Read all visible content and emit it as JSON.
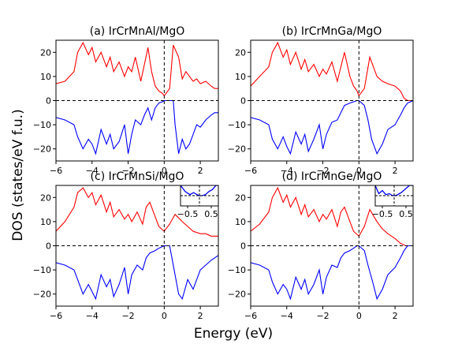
{
  "figure": {
    "xlabel": "Energy (eV)",
    "ylabel": "DOS (states/eV f.u.)"
  },
  "chart_data": [
    {
      "type": "line",
      "title": "(a) IrCrMnAl/MgO",
      "xlim": [
        -6,
        3
      ],
      "ylim": [
        -25,
        25
      ],
      "xticks": [
        -6,
        -4,
        -2,
        0,
        2
      ],
      "yticks": [
        -20,
        -10,
        0,
        10,
        20
      ],
      "series": [
        {
          "color": "#ff0000",
          "x": [
            -6,
            -5.5,
            -5,
            -4.8,
            -4.5,
            -4.2,
            -4,
            -3.8,
            -3.5,
            -3.2,
            -3,
            -2.8,
            -2.5,
            -2.2,
            -2,
            -1.8,
            -1.6,
            -1.3,
            -1.1,
            -0.9,
            -0.7,
            -0.5,
            -0.3,
            -0.1,
            0,
            0.3,
            0.5,
            0.8,
            1,
            1.2,
            1.4,
            1.6,
            1.8,
            2,
            2.3,
            2.6,
            2.8,
            3
          ],
          "y": [
            7,
            8,
            12,
            20,
            24,
            19,
            22,
            16,
            20,
            14,
            18,
            12,
            16,
            10,
            14,
            12,
            18,
            8,
            15,
            22,
            12,
            6,
            4,
            3,
            2,
            5,
            23,
            18,
            9,
            12,
            10,
            8,
            9,
            7,
            8,
            6,
            5,
            5
          ]
        },
        {
          "color": "#0000ff",
          "x": [
            -6,
            -5.5,
            -5,
            -4.8,
            -4.5,
            -4.2,
            -4,
            -3.8,
            -3.5,
            -3.2,
            -3,
            -2.8,
            -2.5,
            -2.2,
            -2,
            -1.8,
            -1.6,
            -1.3,
            -1.1,
            -0.9,
            -0.7,
            -0.5,
            -0.3,
            -0.1,
            0,
            0.3,
            0.5,
            0.6,
            0.8,
            1,
            1.2,
            1.4,
            1.6,
            1.8,
            2,
            2.3,
            2.6,
            2.8,
            3
          ],
          "y": [
            -7,
            -8,
            -10,
            -15,
            -20,
            -16,
            -18,
            -22,
            -12,
            -18,
            -14,
            -20,
            -17,
            -10,
            -22,
            -14,
            -8,
            -10,
            -6,
            -3,
            -8,
            -3,
            -1,
            -0.5,
            0,
            0,
            0,
            -10,
            -22,
            -16,
            -20,
            -18,
            -14,
            -10,
            -11,
            -8,
            -6,
            -5,
            -5
          ]
        }
      ]
    },
    {
      "type": "line",
      "title": "(b) IrCrMnGa/MgO",
      "xlim": [
        -6,
        3
      ],
      "ylim": [
        -25,
        25
      ],
      "xticks": [
        -6,
        -4,
        -2,
        0,
        2
      ],
      "yticks": [
        -20,
        -10,
        0,
        10,
        20
      ],
      "series": [
        {
          "color": "#ff0000",
          "x": [
            -6,
            -5.5,
            -5,
            -4.8,
            -4.5,
            -4.2,
            -4,
            -3.8,
            -3.5,
            -3.2,
            -3,
            -2.8,
            -2.5,
            -2.2,
            -2,
            -1.8,
            -1.5,
            -1.2,
            -1,
            -0.8,
            -0.5,
            -0.3,
            -0.1,
            0,
            0.3,
            0.6,
            1,
            1.3,
            1.6,
            2,
            2.3,
            2.5,
            2.7,
            3
          ],
          "y": [
            6,
            10,
            14,
            20,
            24,
            18,
            21,
            15,
            20,
            13,
            17,
            12,
            15,
            10,
            13,
            11,
            16,
            8,
            14,
            20,
            10,
            6,
            4,
            2,
            5,
            18,
            10,
            8,
            7,
            6,
            4,
            1,
            0,
            0
          ]
        },
        {
          "color": "#0000ff",
          "x": [
            -6,
            -5.5,
            -5,
            -4.8,
            -4.5,
            -4.2,
            -4,
            -3.8,
            -3.5,
            -3.2,
            -3,
            -2.8,
            -2.5,
            -2.2,
            -2,
            -1.8,
            -1.5,
            -1.2,
            -1,
            -0.8,
            -0.5,
            -0.3,
            -0.1,
            0,
            0.3,
            0.5,
            0.7,
            1,
            1.3,
            1.6,
            2,
            2.3,
            2.5,
            2.7,
            3
          ],
          "y": [
            -7,
            -8,
            -10,
            -16,
            -20,
            -15,
            -19,
            -22,
            -13,
            -18,
            -14,
            -21,
            -16,
            -10,
            -20,
            -14,
            -9,
            -8,
            -5,
            -2,
            -1,
            -0.5,
            0,
            0,
            -2,
            -8,
            -16,
            -22,
            -18,
            -12,
            -10,
            -6,
            -3,
            -1,
            0
          ]
        }
      ]
    },
    {
      "type": "line",
      "title": "(c) IrCrMnSi/MgO",
      "xlim": [
        -6,
        3
      ],
      "ylim": [
        -25,
        25
      ],
      "xticks": [
        -6,
        -4,
        -2,
        0,
        2
      ],
      "yticks": [
        -20,
        -10,
        0,
        10,
        20
      ],
      "series": [
        {
          "color": "#ff0000",
          "x": [
            -6,
            -5.5,
            -5,
            -4.8,
            -4.5,
            -4.2,
            -4,
            -3.8,
            -3.5,
            -3.2,
            -3,
            -2.8,
            -2.5,
            -2.2,
            -2,
            -1.8,
            -1.5,
            -1.2,
            -1,
            -0.8,
            -0.5,
            -0.3,
            0,
            0.3,
            0.6,
            1,
            1.3,
            1.6,
            2,
            2.3,
            2.6,
            3
          ],
          "y": [
            6,
            10,
            16,
            22,
            24,
            20,
            22,
            17,
            21,
            14,
            18,
            12,
            15,
            11,
            13,
            10,
            14,
            9,
            16,
            18,
            12,
            8,
            6,
            9,
            13,
            10,
            8,
            6,
            5,
            5,
            4,
            4
          ]
        },
        {
          "color": "#0000ff",
          "x": [
            -6,
            -5.5,
            -5,
            -4.8,
            -4.5,
            -4.2,
            -4,
            -3.8,
            -3.5,
            -3.2,
            -3,
            -2.8,
            -2.5,
            -2.2,
            -2,
            -1.8,
            -1.5,
            -1.2,
            -1,
            -0.8,
            -0.5,
            -0.3,
            0,
            0.3,
            0.5,
            0.8,
            1,
            1.3,
            1.6,
            2,
            2.3,
            2.6,
            3
          ],
          "y": [
            -7,
            -8,
            -10,
            -14,
            -20,
            -16,
            -19,
            -22,
            -12,
            -17,
            -14,
            -21,
            -16,
            -9,
            -20,
            -12,
            -8,
            -10,
            -5,
            -3,
            -2,
            -1,
            0,
            0,
            -8,
            -20,
            -22,
            -14,
            -18,
            -10,
            -8,
            -6,
            -4
          ]
        }
      ],
      "inset": {
        "xlim": [
          -0.8,
          0.8
        ],
        "ylim": [
          -0.5,
          0.5
        ],
        "xticks": [
          -0.5,
          0.5
        ],
        "series": [
          {
            "color": "#0000ff",
            "x": [
              -0.8,
              -0.6,
              -0.4,
              -0.25,
              -0.1,
              0,
              0.1,
              0.25,
              0.4,
              0.55,
              0.7,
              0.8
            ],
            "y": [
              0.5,
              0.2,
              0.05,
              0.15,
              0.05,
              0,
              0,
              0.05,
              0.2,
              0.3,
              0.5,
              0.5
            ]
          }
        ]
      }
    },
    {
      "type": "line",
      "title": "(d) IrCrMnGe/MgO",
      "xlim": [
        -6,
        3
      ],
      "ylim": [
        -25,
        25
      ],
      "xticks": [
        -6,
        -4,
        -2,
        0,
        2
      ],
      "yticks": [
        -20,
        -10,
        0,
        10,
        20
      ],
      "series": [
        {
          "color": "#ff0000",
          "x": [
            -6,
            -5.5,
            -5,
            -4.8,
            -4.5,
            -4.2,
            -4,
            -3.8,
            -3.5,
            -3.2,
            -3,
            -2.8,
            -2.5,
            -2.2,
            -2,
            -1.8,
            -1.5,
            -1.2,
            -1,
            -0.8,
            -0.5,
            -0.3,
            0,
            0.3,
            0.6,
            1,
            1.3,
            1.6,
            2,
            2.3,
            2.6,
            2.8,
            3
          ],
          "y": [
            6,
            9,
            14,
            20,
            24,
            18,
            21,
            16,
            20,
            13,
            17,
            12,
            15,
            10,
            13,
            11,
            15,
            8,
            14,
            16,
            10,
            6,
            4,
            8,
            15,
            10,
            7,
            5,
            3,
            1,
            0,
            0,
            0
          ]
        },
        {
          "color": "#0000ff",
          "x": [
            -6,
            -5.5,
            -5,
            -4.8,
            -4.5,
            -4.2,
            -4,
            -3.8,
            -3.5,
            -3.2,
            -3,
            -2.8,
            -2.5,
            -2.2,
            -2,
            -1.8,
            -1.5,
            -1.2,
            -1,
            -0.8,
            -0.5,
            -0.3,
            -0.1,
            0,
            0.3,
            0.5,
            0.8,
            1,
            1.3,
            1.6,
            2,
            2.3,
            2.5,
            2.7,
            3
          ],
          "y": [
            -7,
            -8,
            -10,
            -15,
            -20,
            -16,
            -18,
            -22,
            -13,
            -18,
            -14,
            -20,
            -16,
            -10,
            -20,
            -13,
            -8,
            -9,
            -5,
            -3,
            -2,
            -1,
            0,
            0,
            -2,
            -8,
            -16,
            -22,
            -18,
            -12,
            -9,
            -5,
            -2,
            0,
            0
          ]
        }
      ],
      "inset": {
        "xlim": [
          -0.8,
          0.8
        ],
        "ylim": [
          -0.5,
          0.5
        ],
        "xticks": [
          -0.5,
          0.5
        ],
        "series": [
          {
            "color": "#0000ff",
            "x": [
              -0.8,
              -0.65,
              -0.5,
              -0.35,
              -0.2,
              -0.1,
              0,
              0.1,
              0.3,
              0.5,
              0.65,
              0.8
            ],
            "y": [
              0.5,
              0.1,
              0.25,
              0.05,
              0.1,
              0.02,
              0,
              0.02,
              0.15,
              0.35,
              0.5,
              0.5
            ]
          }
        ]
      }
    }
  ]
}
